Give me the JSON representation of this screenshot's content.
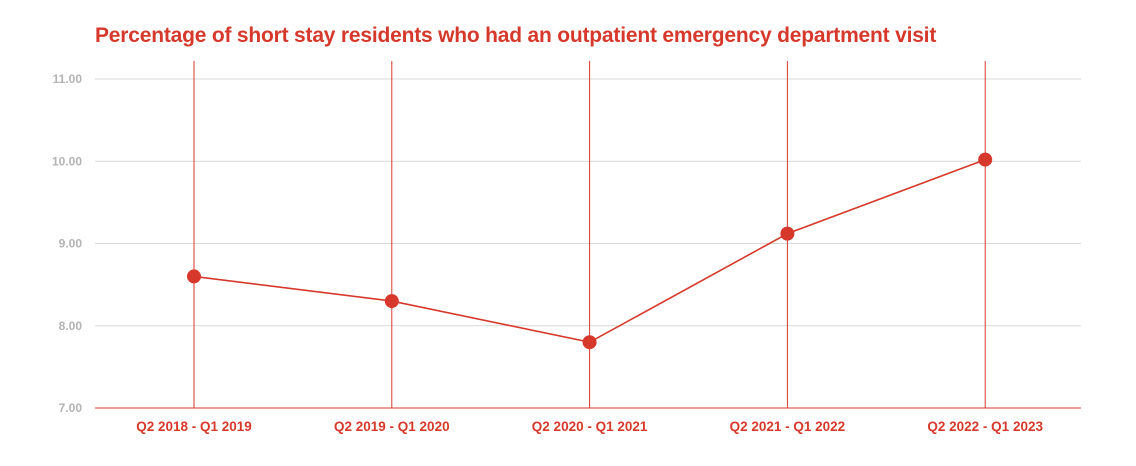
{
  "colors": {
    "accent": "#d6392b",
    "grid": "#d9d9d9",
    "tick_text": "#b3b3b3"
  },
  "chart_data": {
    "type": "line",
    "title": "Percentage of short stay residents who had an outpatient emergency department visit",
    "xlabel": "",
    "ylabel": "",
    "categories": [
      "Q2 2018 - Q1 2019",
      "Q2 2019 - Q1 2020",
      "Q2 2020 - Q1 2021",
      "Q2 2021 - Q1 2022",
      "Q2 2022 - Q1 2023"
    ],
    "values": [
      8.6,
      8.3,
      7.8,
      9.12,
      10.02
    ],
    "ylim": [
      7.0,
      11.0
    ],
    "yticks": [
      7.0,
      8.0,
      9.0,
      10.0,
      11.0
    ],
    "ytick_labels": [
      "7.00",
      "8.00",
      "9.00",
      "10.00",
      "11.00"
    ],
    "grid": true,
    "legend": "none"
  }
}
